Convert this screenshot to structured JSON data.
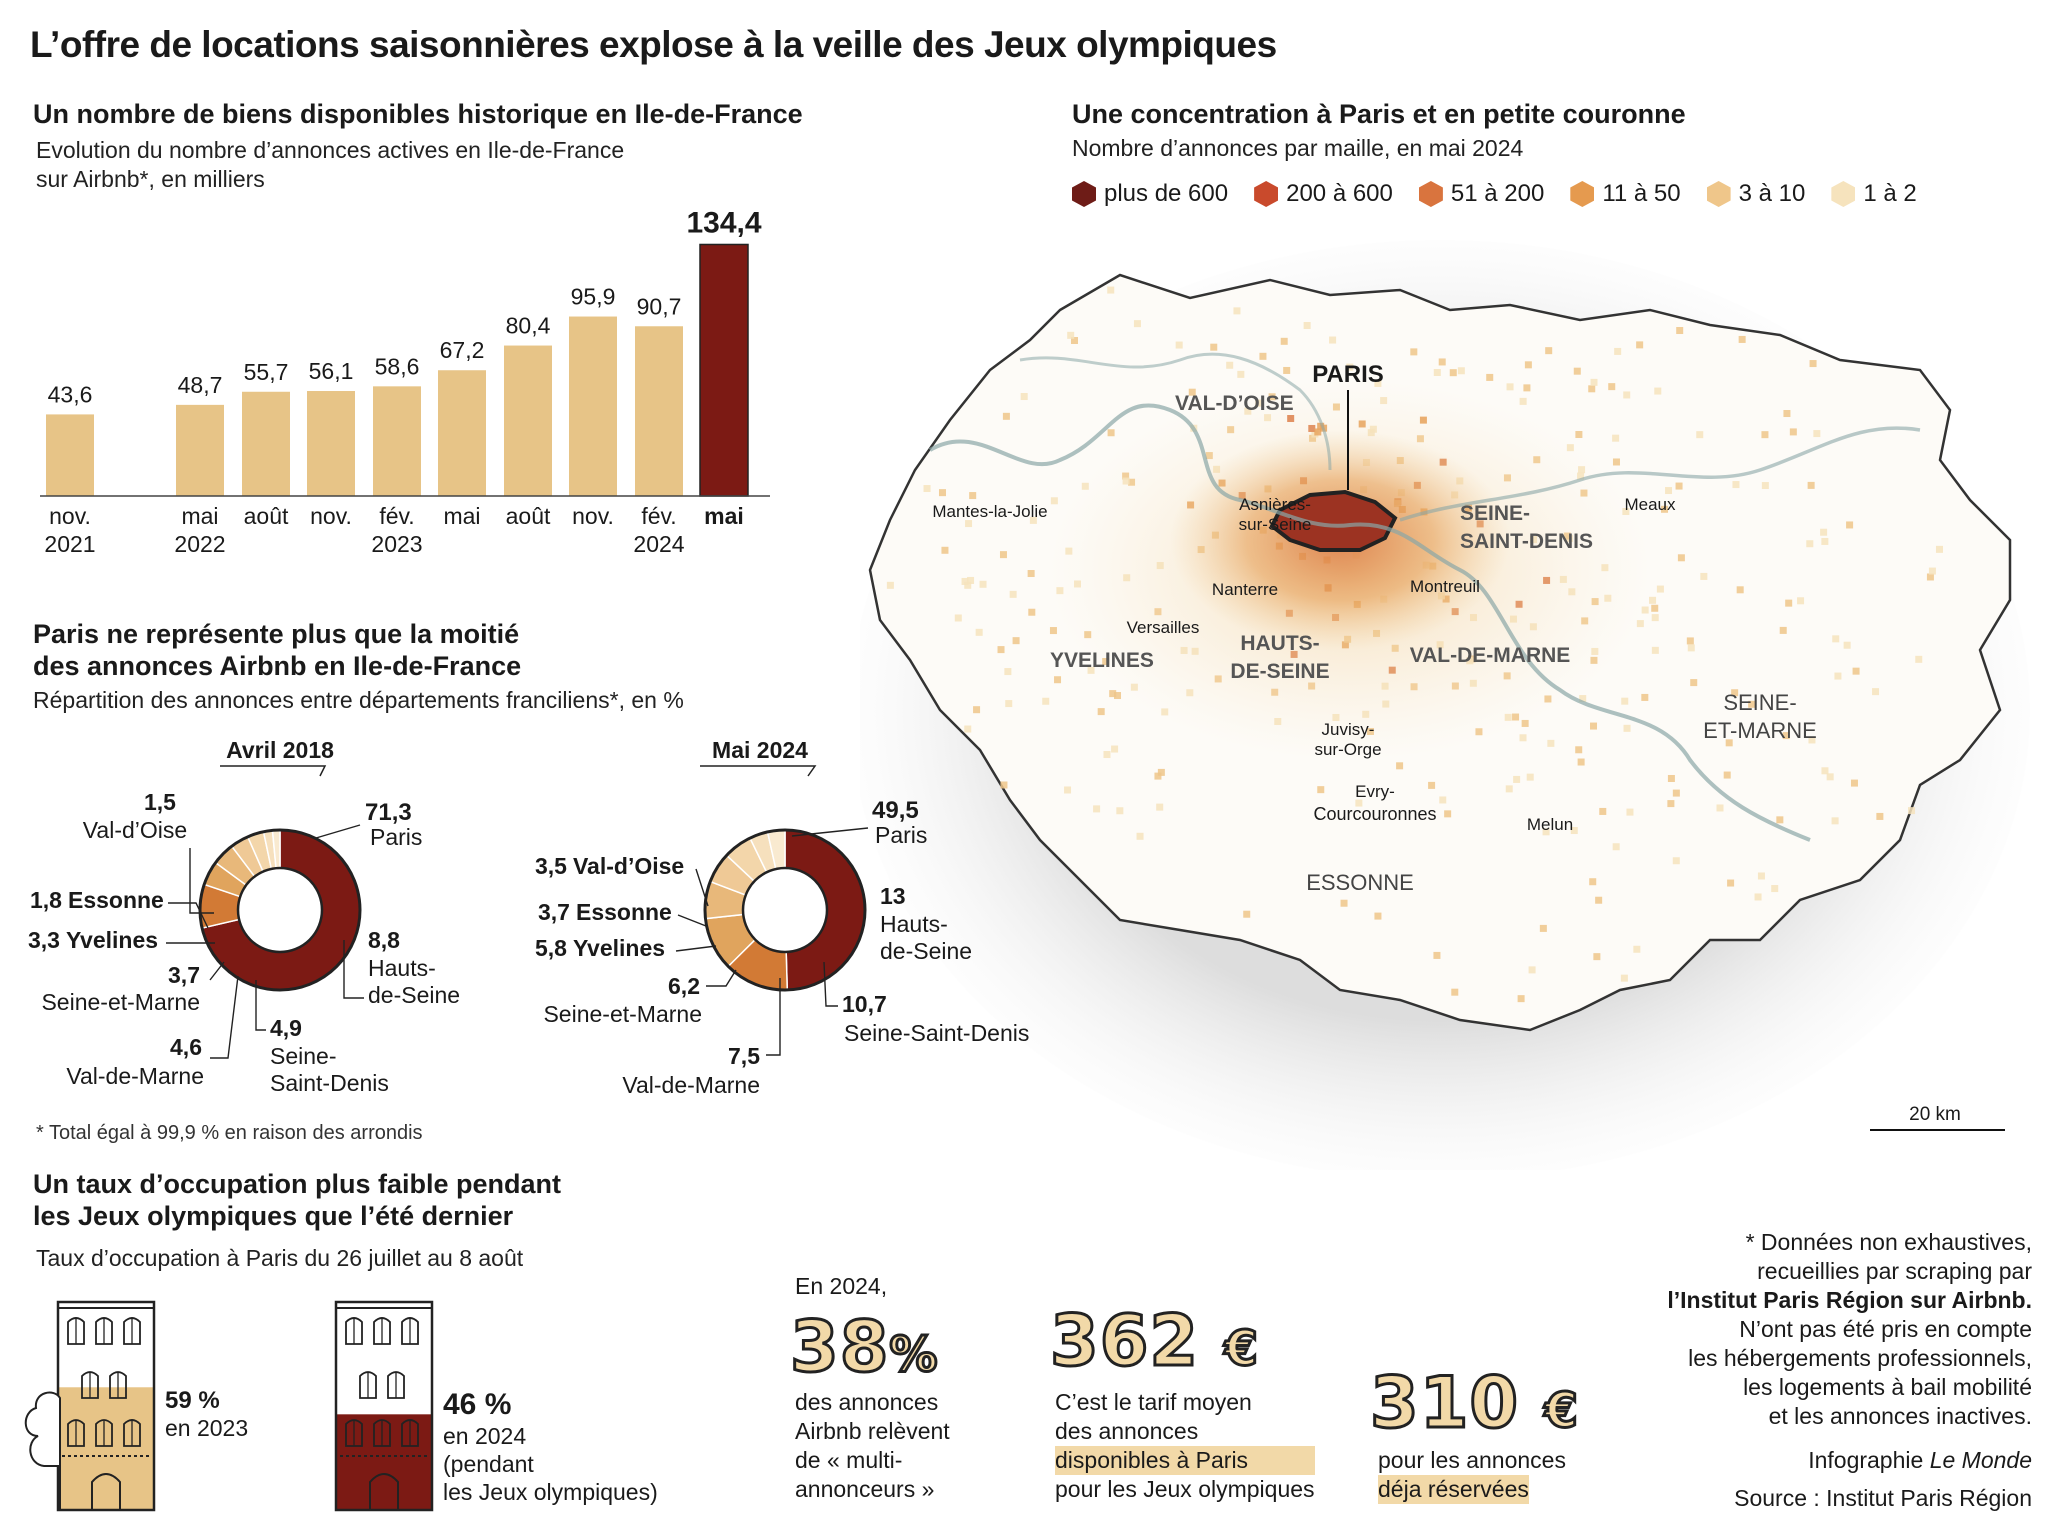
{
  "title": "L’offre de locations saisonnières explose à la veille des Jeux olympiques",
  "colors": {
    "bar": "#e7c487",
    "bar_highlight": "#7c1a14",
    "map_bg": "#ebebeb"
  },
  "bar_section": {
    "heading": "Un nombre de biens disponibles historique en Ile-de-France",
    "subtitle_line1": "Evolution du nombre d’annonces actives en Ile-de-France",
    "subtitle_line2": "sur Airbnb*, en milliers"
  },
  "map_section": {
    "heading": "Une concentration à Paris et en petite couronne",
    "subtitle": "Nombre d’annonces par maille, en mai 2024",
    "legend": [
      {
        "label": "plus de 600",
        "color": "#6e1c17"
      },
      {
        "label": "200 à 600",
        "color": "#c94a2c"
      },
      {
        "label": "51 à 200",
        "color": "#d9743e"
      },
      {
        "label": "11 à 50",
        "color": "#e59a4f"
      },
      {
        "label": "3 à 10",
        "color": "#efc68a"
      },
      {
        "label": "1 à 2",
        "color": "#f6e3bd"
      }
    ],
    "place_labels": {
      "valdoise": "VAL-D’OISE",
      "paris": "PARIS",
      "ssd1": "SEINE-",
      "ssd2": "SAINT-DENIS",
      "yvelines": "YVELINES",
      "hds1": "HAUTS-",
      "hds2": "DE-SEINE",
      "vdm": "VAL-DE-MARNE",
      "sem1": "SEINE-",
      "sem2": "ET-MARNE",
      "essonne": "ESSONNE",
      "mantes": "Mantes-la-Jolie",
      "asnieres1": "Asnières-",
      "asnieres2": "sur-Seine",
      "meaux": "Meaux",
      "nanterre": "Nanterre",
      "montreuil": "Montreuil",
      "versailles": "Versailles",
      "juvisy1": "Juvisy-",
      "juvisy2": "sur-Orge",
      "evry": "Evry-",
      "courcouronnes": "Courcouronnes",
      "melun": "Melun"
    },
    "scale": "20 km"
  },
  "donut_section": {
    "heading_line1": "Paris ne représente plus que la moitié",
    "heading_line2": "des annonces Airbnb en Ile-de-France",
    "subtitle": "Répartition des annonces entre départements franciliens*, en %",
    "footnote": "* Total égal à 99,9 % en raison des arrondis"
  },
  "occupancy_section": {
    "heading_line1": "Un taux d’occupation plus faible pendant",
    "heading_line2": "les Jeux olympiques que l’été dernier",
    "subtitle": "Taux d’occupation à Paris du 26 juillet au 8 août",
    "items": [
      {
        "value": "59 %",
        "label": "en 2023",
        "fraction": 0.59,
        "color": "#e7c487"
      },
      {
        "value": "46 %",
        "label_line1": "en 2024",
        "label_line2": "(pendant",
        "label_line3": "les Jeux olympiques)",
        "fraction": 0.46,
        "color": "#7c1a14"
      }
    ]
  },
  "stats": {
    "intro": "En 2024,",
    "s1": {
      "number": "38",
      "unit": "%",
      "line1": "des annonces",
      "line2": "Airbnb relèvent",
      "line3": "de « multi-",
      "line4": "annonceurs »"
    },
    "s2": {
      "number": "362",
      "unit": "€",
      "line1": "C’est le tarif moyen",
      "line2": "des annonces",
      "line3": "disponibles à Paris",
      "line4": "pour les Jeux olympiques"
    },
    "s3": {
      "number": "310",
      "unit": "€",
      "line1": "pour les annonces",
      "line2": "déja réservées"
    }
  },
  "footer": {
    "note_line1": "* Données non exhaustives,",
    "note_line2": "recueillies par scraping par",
    "note_line3": "l’Institut Paris Région sur Airbnb.",
    "note_line4": "N’ont pas été pris en compte",
    "note_line5": "les hébergements professionnels,",
    "note_line6": "les logements à bail mobilité",
    "note_line7": "et les annonces inactives.",
    "credit_prefix": "Infographie ",
    "credit_name": "Le Monde",
    "source": "Source : Institut Paris Région"
  },
  "chart_data": [
    {
      "type": "bar",
      "title": "Un nombre de biens disponibles historique en Ile-de-France",
      "ylabel": "",
      "categories": [
        "nov. 2021",
        "mai 2022",
        "août",
        "nov.",
        "fév. 2023",
        "mai",
        "août",
        "nov.",
        "fév. 2024",
        "mai"
      ],
      "tick_line1": [
        "nov.",
        "mai",
        "août",
        "nov.",
        "fév.",
        "mai",
        "août",
        "nov.",
        "fév.",
        "mai"
      ],
      "tick_line2": [
        "2021",
        "2022",
        "",
        "",
        "2023",
        "",
        "",
        "",
        "2024",
        ""
      ],
      "values": [
        43.6,
        48.7,
        55.7,
        56.1,
        58.6,
        67.2,
        80.4,
        95.9,
        90.7,
        134.4
      ],
      "value_labels": [
        "43,6",
        "48,7",
        "55,7",
        "56,1",
        "58,6",
        "67,2",
        "80,4",
        "95,9",
        "90,7",
        "134,4"
      ],
      "highlight_index": 9,
      "ylim": [
        0,
        140
      ]
    },
    {
      "type": "pie",
      "title": "Avril 2018",
      "slices": [
        {
          "name": "Paris",
          "value": 71.3,
          "label": "71,3",
          "color": "#7c1a14"
        },
        {
          "name": "Hauts-de-Seine",
          "value": 8.8,
          "label": "8,8",
          "color": "#d27a35"
        },
        {
          "name": "Seine-Saint-Denis",
          "value": 4.9,
          "label": "4,9",
          "color": "#e0a45d"
        },
        {
          "name": "Val-de-Marne",
          "value": 4.6,
          "label": "4,6",
          "color": "#e8b87a"
        },
        {
          "name": "Seine-et-Marne",
          "value": 3.7,
          "label": "3,7",
          "color": "#efc996"
        },
        {
          "name": "Yvelines",
          "value": 3.3,
          "label": "3,3",
          "color": "#f3d6aa"
        },
        {
          "name": "Essonne",
          "value": 1.8,
          "label": "1,8",
          "color": "#f6e0bd"
        },
        {
          "name": "Val-d’Oise",
          "value": 1.5,
          "label": "1,5",
          "color": "#f9ead0"
        }
      ]
    },
    {
      "type": "pie",
      "title": "Mai 2024",
      "slices": [
        {
          "name": "Paris",
          "value": 49.5,
          "label": "49,5",
          "color": "#7c1a14"
        },
        {
          "name": "Hauts-de-Seine",
          "value": 13,
          "label": "13",
          "color": "#d27a35"
        },
        {
          "name": "Seine-Saint-Denis",
          "value": 10.7,
          "label": "10,7",
          "color": "#e0a45d"
        },
        {
          "name": "Val-de-Marne",
          "value": 7.5,
          "label": "7,5",
          "color": "#e8b87a"
        },
        {
          "name": "Seine-et-Marne",
          "value": 6.2,
          "label": "6,2",
          "color": "#efc996"
        },
        {
          "name": "Yvelines",
          "value": 5.8,
          "label": "5,8",
          "color": "#f3d6aa"
        },
        {
          "name": "Essonne",
          "value": 3.7,
          "label": "3,7",
          "color": "#f6e0bd"
        },
        {
          "name": "Val-d’Oise",
          "value": 3.5,
          "label": "3,5",
          "color": "#f9ead0"
        }
      ]
    }
  ]
}
